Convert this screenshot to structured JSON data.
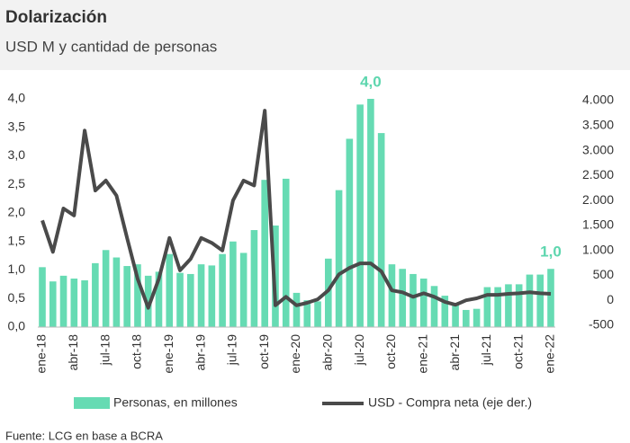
{
  "chart_data": {
    "type": "bar_line",
    "title": "Dolarización",
    "subtitle": "USD M y cantidad de personas",
    "source": "Fuente: LCG en base a BCRA",
    "categories": [
      "ene-18",
      null,
      null,
      "abr-18",
      null,
      null,
      "jul-18",
      null,
      null,
      "oct-18",
      null,
      null,
      "ene-19",
      null,
      null,
      "abr-19",
      null,
      null,
      "jul-19",
      null,
      null,
      "oct-19",
      null,
      null,
      "ene-20",
      null,
      null,
      "abr-20",
      null,
      null,
      "jul-20",
      null,
      null,
      "oct-20",
      null,
      null,
      "ene-21",
      null,
      null,
      "abr-21",
      null,
      null,
      "jul-21",
      null,
      null,
      "oct-21",
      null,
      null,
      "ene-22"
    ],
    "series": [
      {
        "name": "Personas, en millones",
        "color": "#66dbb3",
        "kind": "bar",
        "axis": "y",
        "values": [
          1.05,
          0.8,
          0.9,
          0.85,
          0.82,
          1.12,
          1.35,
          1.22,
          1.07,
          1.1,
          0.9,
          0.97,
          1.28,
          0.95,
          0.93,
          1.1,
          1.08,
          1.28,
          1.5,
          1.3,
          1.7,
          2.58,
          1.78,
          2.6,
          0.6,
          0.47,
          0.45,
          1.2,
          2.4,
          3.3,
          3.9,
          4.0,
          3.4,
          1.1,
          1.02,
          0.93,
          0.85,
          0.72,
          0.55,
          0.42,
          0.3,
          0.32,
          0.7,
          0.7,
          0.75,
          0.75,
          0.92,
          0.92,
          1.02
        ],
        "value_labels": [
          null,
          null,
          null,
          null,
          null,
          null,
          null,
          null,
          null,
          null,
          null,
          null,
          null,
          null,
          null,
          null,
          null,
          null,
          null,
          null,
          null,
          null,
          null,
          null,
          null,
          null,
          null,
          null,
          null,
          null,
          null,
          "4,0",
          null,
          null,
          null,
          null,
          null,
          null,
          null,
          null,
          null,
          null,
          null,
          null,
          null,
          null,
          null,
          null,
          "1,0"
        ]
      },
      {
        "name": "USD - Compra neta (eje der.)",
        "color": "#4a4a4a",
        "kind": "line",
        "axis": "y2",
        "values": [
          1600,
          970,
          1840,
          1700,
          3400,
          2200,
          2400,
          2100,
          1250,
          430,
          -150,
          430,
          1250,
          600,
          830,
          1250,
          1150,
          1000,
          2000,
          2400,
          2300,
          3800,
          -100,
          70,
          -100,
          -50,
          20,
          200,
          520,
          650,
          740,
          740,
          580,
          200,
          160,
          70,
          140,
          70,
          -30,
          -90,
          0,
          40,
          110,
          110,
          130,
          140,
          160,
          140,
          130
        ]
      }
    ],
    "ylim": [
      0,
      4
    ],
    "yticks": [
      {
        "value": 0,
        "label": "0,0"
      },
      {
        "value": 0.5,
        "label": "0,5"
      },
      {
        "value": 1,
        "label": "1,0"
      },
      {
        "value": 1.5,
        "label": "1,5"
      },
      {
        "value": 2,
        "label": "2,0"
      },
      {
        "value": 2.5,
        "label": "2,5"
      },
      {
        "value": 3,
        "label": "3,0"
      },
      {
        "value": 3.5,
        "label": "3,5"
      },
      {
        "value": 4,
        "label": "4,0"
      }
    ],
    "y2lim": [
      -500,
      4000
    ],
    "y2ticks": [
      -500,
      0,
      500,
      {
        "value": 1000,
        "label": "1.000"
      },
      {
        "value": 1500,
        "label": "1.500"
      },
      {
        "value": 2000,
        "label": "2.000"
      },
      {
        "value": 2500,
        "label": "2.500"
      },
      {
        "value": 3000,
        "label": "3.000"
      },
      {
        "value": 3500,
        "label": "3.500"
      },
      {
        "value": 4000,
        "label": "4.000"
      }
    ],
    "legend": "bottom"
  }
}
